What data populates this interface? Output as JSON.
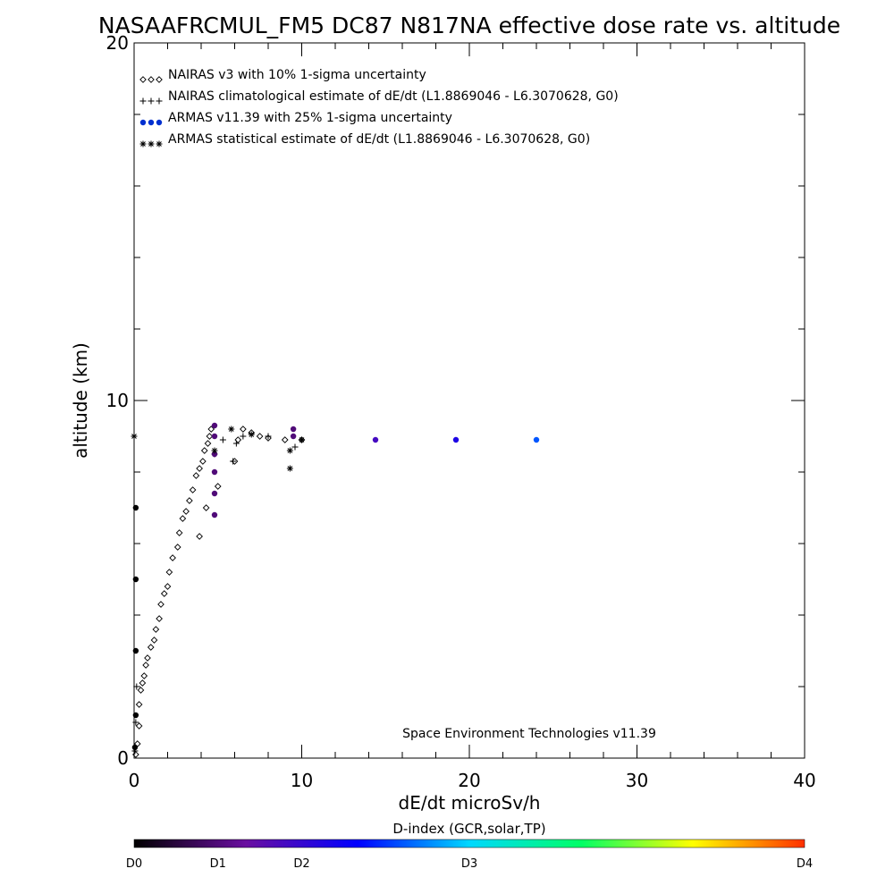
{
  "chart_data": {
    "type": "scatter",
    "title": "NASAAFRCMUL_FM5 DC87 N817NA effective dose rate vs. altitude",
    "xlabel": "dE/dt microSv/h",
    "ylabel": "altitude (km)",
    "xlim": [
      0,
      40
    ],
    "ylim": [
      0,
      20
    ],
    "x_ticks": [
      0,
      10,
      20,
      30,
      40
    ],
    "y_ticks": [
      0,
      10,
      20
    ],
    "legend_position": "top-left",
    "credit": "Space Environment Technologies v11.39",
    "colorbar": {
      "title": "D-index (GCR,solar,TP)",
      "labels": [
        "D0",
        "D1",
        "D2",
        "D3",
        "D4"
      ],
      "label_values": [
        0,
        0.5,
        1,
        2,
        4
      ],
      "range": [
        0,
        4
      ],
      "colors": [
        "#000000",
        "#6a0fa0",
        "#0000ff",
        "#00d8ff",
        "#00ff66",
        "#ffff00",
        "#ff3000"
      ]
    },
    "series": [
      {
        "name": "NAIRAS v3 with 10% 1-sigma uncertainty",
        "marker": "diamond",
        "color": "#000000",
        "points": [
          [
            0.1,
            0.1
          ],
          [
            0.2,
            0.4
          ],
          [
            0.3,
            0.9
          ],
          [
            0.3,
            1.5
          ],
          [
            0.4,
            1.9
          ],
          [
            0.5,
            2.1
          ],
          [
            0.6,
            2.3
          ],
          [
            0.7,
            2.6
          ],
          [
            0.8,
            2.8
          ],
          [
            1.0,
            3.1
          ],
          [
            1.2,
            3.3
          ],
          [
            1.3,
            3.6
          ],
          [
            1.5,
            3.9
          ],
          [
            1.6,
            4.3
          ],
          [
            1.8,
            4.6
          ],
          [
            2.0,
            4.8
          ],
          [
            2.1,
            5.2
          ],
          [
            2.3,
            5.6
          ],
          [
            2.6,
            5.9
          ],
          [
            2.7,
            6.3
          ],
          [
            2.9,
            6.7
          ],
          [
            3.1,
            6.9
          ],
          [
            3.3,
            7.2
          ],
          [
            3.5,
            7.5
          ],
          [
            3.7,
            7.9
          ],
          [
            3.9,
            8.1
          ],
          [
            4.1,
            8.3
          ],
          [
            4.2,
            8.6
          ],
          [
            4.4,
            8.8
          ],
          [
            4.5,
            9.0
          ],
          [
            4.6,
            9.2
          ],
          [
            3.9,
            6.2
          ],
          [
            4.3,
            7.0
          ],
          [
            5.0,
            7.6
          ],
          [
            6.0,
            8.3
          ],
          [
            6.2,
            8.9
          ],
          [
            6.5,
            9.2
          ],
          [
            7.0,
            9.1
          ],
          [
            7.5,
            9.0
          ],
          [
            8.0,
            8.95
          ],
          [
            9.0,
            8.9
          ],
          [
            10.0,
            8.9
          ]
        ]
      },
      {
        "name": "NAIRAS climatological estimate of dE/dt (L1.8869046 - L6.3070628, G0)",
        "marker": "plus",
        "color": "#000000",
        "points": [
          [
            0.05,
            0.2
          ],
          [
            0.1,
            1.0
          ],
          [
            0.15,
            2.0
          ],
          [
            4.8,
            8.5
          ],
          [
            5.3,
            8.9
          ],
          [
            5.9,
            8.3
          ],
          [
            6.1,
            8.8
          ],
          [
            6.5,
            9.0
          ],
          [
            8.0,
            9.0
          ],
          [
            9.6,
            8.7
          ],
          [
            10.0,
            8.9
          ]
        ]
      },
      {
        "name": "ARMAS v11.39 with 25% 1-sigma uncertainty",
        "marker": "dot",
        "color": "#0030d0",
        "points": [
          [
            0.05,
            0.3,
            0.0
          ],
          [
            0.1,
            1.2,
            0.0
          ],
          [
            0.1,
            3.0,
            0.0
          ],
          [
            0.1,
            5.0,
            0.0
          ],
          [
            0.1,
            7.0,
            0.0
          ],
          [
            4.8,
            6.8,
            0.5
          ],
          [
            4.8,
            7.4,
            0.5
          ],
          [
            4.8,
            8.0,
            0.5
          ],
          [
            4.8,
            8.5,
            0.5
          ],
          [
            4.8,
            9.0,
            0.5
          ],
          [
            4.8,
            9.3,
            0.5
          ],
          [
            9.5,
            9.0,
            0.5
          ],
          [
            9.5,
            9.2,
            0.5
          ],
          [
            14.4,
            8.9,
            0.9
          ],
          [
            19.2,
            8.9,
            1.15
          ],
          [
            24.0,
            8.9,
            1.6
          ]
        ]
      },
      {
        "name": "ARMAS statistical estimate of dE/dt (L1.8869046 - L6.3070628, G0)",
        "marker": "asterisk",
        "color": "#000000",
        "points": [
          [
            0.0,
            9.0
          ],
          [
            4.8,
            8.6
          ],
          [
            5.8,
            9.2
          ],
          [
            7.0,
            9.05
          ],
          [
            9.3,
            8.6
          ],
          [
            9.3,
            8.1
          ],
          [
            10.0,
            8.9
          ]
        ]
      }
    ]
  }
}
